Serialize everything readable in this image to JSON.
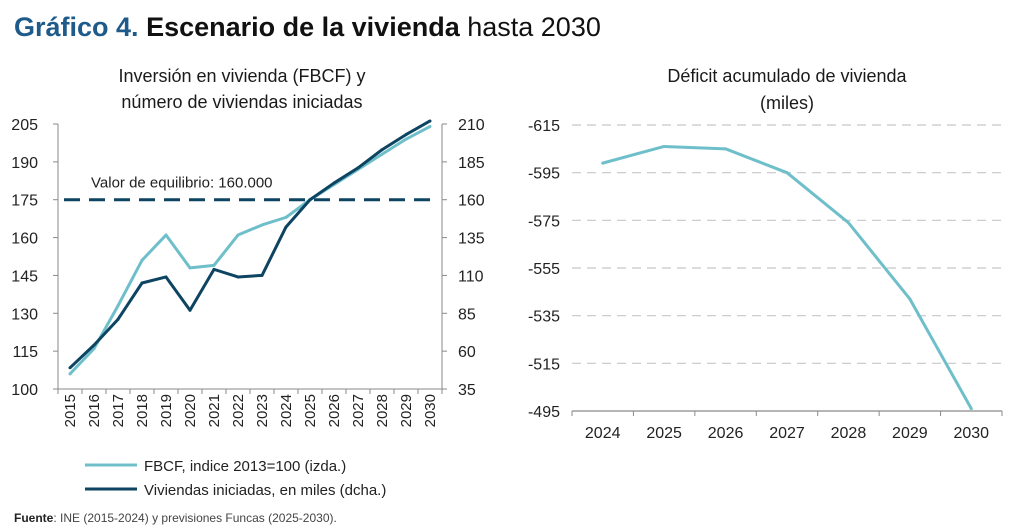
{
  "header": {
    "prefix": "Gráfico 4.",
    "bold": "Escenario de la vivienda",
    "rest": "hasta 2030"
  },
  "source": {
    "label": "Fuente",
    "text": ": INE (2015-2024) y previsiones Funcas (2025-2030)."
  },
  "chart_data": [
    {
      "type": "line",
      "title": [
        "Inversión en vivienda (FBCF) y",
        "número de viviendas iniciadas"
      ],
      "x": [
        "2015",
        "2016",
        "2017",
        "2018",
        "2019",
        "2020",
        "2021",
        "2022",
        "2023",
        "2024",
        "2025",
        "2026",
        "2027",
        "2028",
        "2029",
        "2030"
      ],
      "ylim_left": [
        100,
        205
      ],
      "yticks_left": [
        100,
        115,
        130,
        145,
        160,
        175,
        190,
        205
      ],
      "ylim_right": [
        35,
        210
      ],
      "yticks_right": [
        35,
        60,
        85,
        110,
        135,
        160,
        185,
        210
      ],
      "series": [
        {
          "name": "FBCF, indice 2013=100 (izda.)",
          "axis": "left",
          "color": "#6fbfcb",
          "values": [
            106,
            116,
            133,
            151,
            161,
            148,
            149,
            161,
            165,
            168,
            175,
            181,
            187,
            193,
            199,
            204
          ]
        },
        {
          "name": "Viviendas iniciadas, en miles (dcha.)",
          "axis": "right",
          "color": "#0d4461",
          "values": [
            49,
            64,
            81,
            105,
            109,
            87,
            114,
            109,
            110,
            142,
            160,
            171,
            181,
            193,
            203,
            212
          ]
        }
      ],
      "reference_line": {
        "label": "Valor de equilibrio: 160.000",
        "axis": "right",
        "value": 160,
        "color": "#0d4461",
        "style": "dashed"
      },
      "legend": "bottom-left",
      "grid": false
    },
    {
      "type": "line",
      "title": [
        "Déficit acumulado de vivienda",
        "(miles)"
      ],
      "x": [
        "2024",
        "2025",
        "2026",
        "2027",
        "2028",
        "2029",
        "2030"
      ],
      "ylim": [
        -615,
        -495
      ],
      "yticks": [
        -615,
        -595,
        -575,
        -555,
        -535,
        -515,
        -495
      ],
      "y_reversed": true,
      "series": [
        {
          "name": "",
          "color": "#6fbfcb",
          "values": [
            -599,
            -606,
            -605,
            -595,
            -574,
            -542,
            -496
          ]
        }
      ],
      "grid": true
    }
  ]
}
